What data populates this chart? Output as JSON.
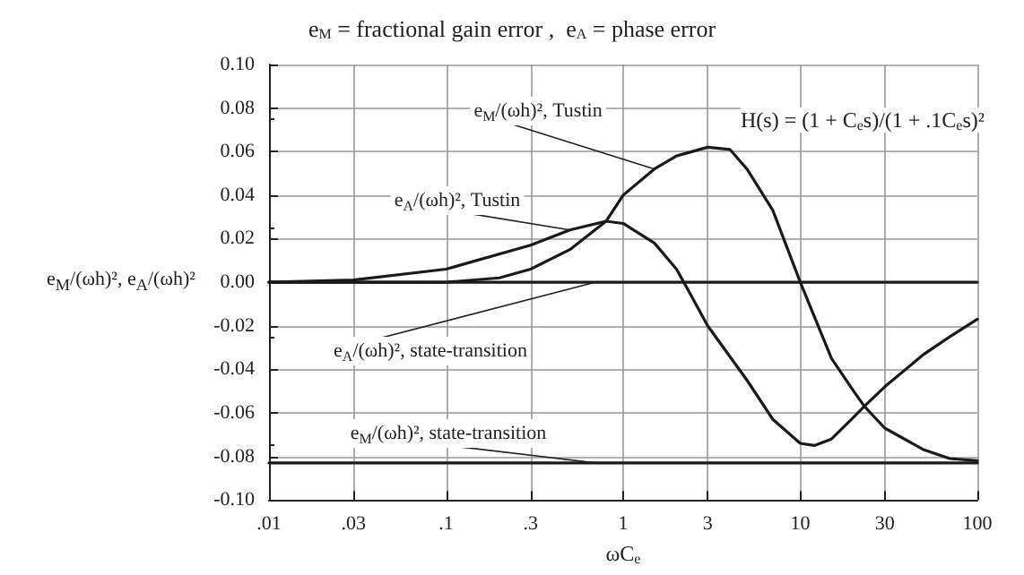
{
  "chart_data": {
    "type": "line",
    "title": "e$_{M}$ = fractional gain error ,  e$_{A}$ = phase error",
    "xlabel": "ωC$_{e}$",
    "ylabel": "e$_{M}$/(ωh)², e$_{A}$/(ωh)²",
    "annotations": [
      "H(s) = (1 + C$_{e}$s)/(1 + .1C$_{e}$s)²"
    ],
    "log": "x",
    "xlim": [
      0.01,
      100
    ],
    "xticks": [
      {
        "value": 0.01,
        "label": ".01"
      },
      {
        "value": 0.03,
        "label": ".03"
      },
      {
        "value": 0.1,
        "label": ".1"
      },
      {
        "value": 0.3,
        "label": ".3"
      },
      1,
      3,
      10,
      30,
      100
    ],
    "ylim": [
      -0.1,
      0.1
    ],
    "yticks": [
      {
        "value": -0.1,
        "label": "-0.10"
      },
      {
        "value": -0.08,
        "label": "-0.08"
      },
      {
        "value": -0.06,
        "label": "-0.06"
      },
      {
        "value": -0.04,
        "label": "-0.04"
      },
      {
        "value": -0.02,
        "label": "-0.02"
      },
      {
        "value": 0,
        "label": "0.00"
      },
      {
        "value": 0.02,
        "label": "0.02"
      },
      {
        "value": 0.04,
        "label": "0.04"
      },
      {
        "value": 0.06,
        "label": "0.06"
      },
      {
        "value": 0.08,
        "label": "0.08"
      },
      {
        "value": 0.1,
        "label": "0.10"
      }
    ],
    "grid": true,
    "legend": false,
    "line_style": "solid",
    "series": [
      {
        "name": "e$_{M}$/(ωh)², Tustin",
        "color": "#1a1a1a",
        "x": [
          0.01,
          0.1,
          0.2,
          0.3,
          0.5,
          0.8,
          1,
          1.5,
          2,
          3,
          4,
          5,
          7,
          10,
          15,
          20,
          23,
          30,
          50,
          70,
          100
        ],
        "values": [
          0,
          0,
          0.002,
          0.006,
          0.015,
          0.028,
          0.04,
          0.052,
          0.058,
          0.062,
          0.061,
          0.052,
          0.033,
          0,
          -0.035,
          -0.05,
          -0.057,
          -0.067,
          -0.077,
          -0.081,
          -0.082
        ]
      },
      {
        "name": "e$_{A}$/(ωh)², Tustin",
        "color": "#1a1a1a",
        "x": [
          0.01,
          0.03,
          0.1,
          0.3,
          0.5,
          0.8,
          1,
          1.5,
          2,
          2.2,
          3,
          5,
          7,
          10,
          12,
          15,
          20,
          23,
          30,
          50,
          70,
          100
        ],
        "values": [
          0,
          0.001,
          0.006,
          0.017,
          0.024,
          0.028,
          0.027,
          0.018,
          0.006,
          0,
          -0.02,
          -0.045,
          -0.063,
          -0.074,
          -0.075,
          -0.072,
          -0.062,
          -0.057,
          -0.048,
          -0.033,
          -0.025,
          -0.017
        ]
      },
      {
        "name": "e$_{A}$/(ωh)², state-transition",
        "color": "#1a1a1a",
        "x": [
          0.01,
          0.7,
          100
        ],
        "values": [
          0,
          0,
          0
        ]
      },
      {
        "name": "e$_{M}$/(ωh)², state-transition",
        "color": "#1a1a1a",
        "x": [
          0.01,
          0.7,
          100
        ],
        "values": [
          -0.083,
          -0.083,
          -0.083
        ]
      }
    ]
  }
}
